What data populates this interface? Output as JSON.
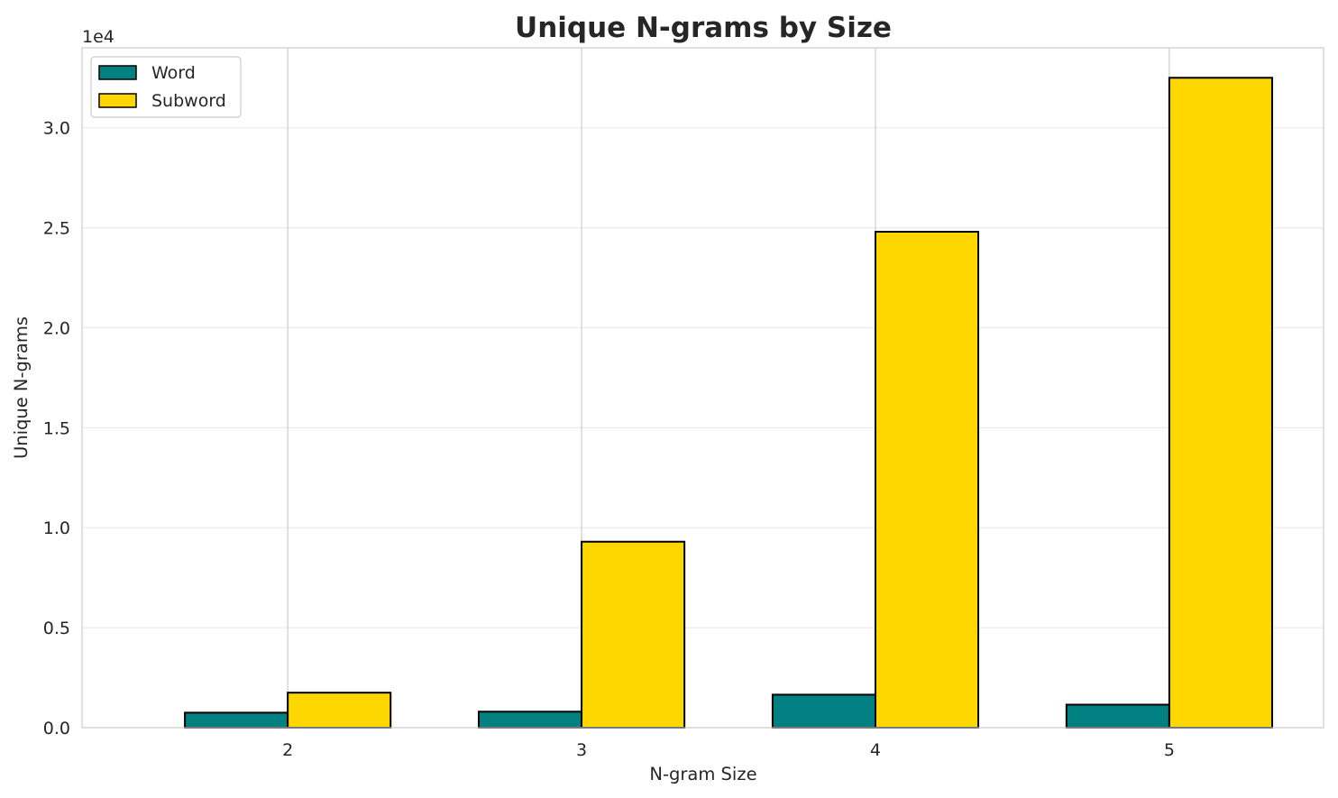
{
  "chart_data": {
    "type": "bar",
    "title": "Unique N-grams by Size",
    "xlabel": "N-gram Size",
    "ylabel": "Unique N-grams",
    "y_offset_label": "1e4",
    "y_scale_factor": 10000,
    "categories": [
      "2",
      "3",
      "4",
      "5"
    ],
    "series": [
      {
        "name": "Word",
        "color": "#008080",
        "values": [
          750,
          800,
          1650,
          1150
        ]
      },
      {
        "name": "Subword",
        "color": "#FFD700",
        "values": [
          1750,
          9300,
          24800,
          32500
        ]
      }
    ],
    "ylim": [
      0,
      34000
    ],
    "y_ticks": [
      0,
      5000,
      10000,
      15000,
      20000,
      25000,
      30000
    ],
    "y_tick_labels": [
      "0.0",
      "0.5",
      "1.0",
      "1.5",
      "2.0",
      "2.5",
      "3.0"
    ],
    "grid": true,
    "legend_position": "top-left"
  }
}
